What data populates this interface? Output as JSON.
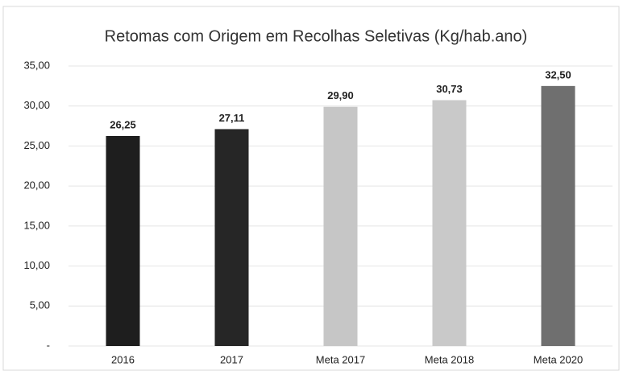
{
  "chart_data": {
    "type": "bar",
    "title": "Retomas com Origem em Recolhas Seletivas (Kg/hab.ano)",
    "categories": [
      "2016",
      "2017",
      "Meta 2017",
      "Meta 2018",
      "Meta 2020"
    ],
    "values": [
      26.25,
      27.11,
      29.9,
      30.73,
      32.5
    ],
    "value_labels": [
      "26,25",
      "27,11",
      "29,90",
      "30,73",
      "32,50"
    ],
    "colors": [
      "#1e1e1e",
      "#262626",
      "#c6c6c6",
      "#c9c9c9",
      "#6f6f6f"
    ],
    "ylim": [
      0,
      35
    ],
    "yticks": [
      {
        "value": 0,
        "label": "-"
      },
      {
        "value": 5,
        "label": "5,00"
      },
      {
        "value": 10,
        "label": "10,00"
      },
      {
        "value": 15,
        "label": "15,00"
      },
      {
        "value": 20,
        "label": "20,00"
      },
      {
        "value": 25,
        "label": "25,00"
      },
      {
        "value": 30,
        "label": "30,00"
      },
      {
        "value": 35,
        "label": "35,00"
      }
    ],
    "grid": true
  }
}
